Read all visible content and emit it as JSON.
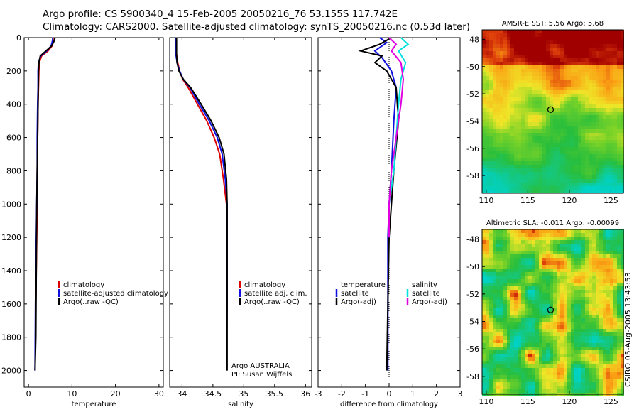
{
  "header": {
    "title_line1": "Argo profile: CS 5900340_4 15-Feb-2005 20050216_76 53.155S 117.742E",
    "title_line2": "Climatology: CARS2000. Satellite-adjusted climatology: synTS_20050216.nc (0.53d later)"
  },
  "timestamp": "CSIRO 05-Aug-2005 13:43:53",
  "colors": {
    "climatology": "#e00000",
    "satellite": "#1010e0",
    "argo": "#000000",
    "satellite_salinity": "#00e0e0",
    "argo_adj_salinity": "#e000e0"
  },
  "chart_data": [
    {
      "type": "line",
      "xlabel": "temperature",
      "ylabel": "",
      "xlim": [
        -1,
        31
      ],
      "ylim": [
        2100,
        0
      ],
      "y_reversed": true,
      "x_ticks": [
        0,
        10,
        20,
        30
      ],
      "y_ticks": [
        0,
        200,
        400,
        600,
        800,
        1000,
        1200,
        1400,
        1600,
        1800,
        2000
      ],
      "legend": [
        "climatology",
        "satellite-adjusted climatology",
        "Argo(..raw -QC)"
      ],
      "legend_position": "bottom-right",
      "series": [
        {
          "name": "climatology",
          "color": "#e00000",
          "x": [
            6.0,
            5.8,
            5.4,
            4.5,
            3.0,
            2.5,
            2.4,
            2.3,
            2.2,
            2.1,
            2.0,
            2.0,
            1.9,
            1.8,
            1.7,
            1.6
          ],
          "y": [
            0,
            20,
            50,
            80,
            110,
            150,
            200,
            300,
            400,
            600,
            800,
            1000,
            1200,
            1400,
            1600,
            1800
          ]
        },
        {
          "name": "satellite-adjusted climatology",
          "color": "#1010e0",
          "x": [
            5.6,
            5.5,
            5.2,
            4.2,
            2.8,
            2.3,
            2.2,
            2.2,
            2.1,
            2.0,
            2.0,
            1.9,
            1.8,
            1.7,
            1.6,
            1.5
          ],
          "y": [
            0,
            20,
            50,
            80,
            110,
            150,
            200,
            300,
            400,
            600,
            800,
            1000,
            1200,
            1400,
            1600,
            2000
          ]
        },
        {
          "name": "Argo(..raw -QC)",
          "color": "#000000",
          "x": [
            6.1,
            5.9,
            5.3,
            4.0,
            2.7,
            2.4,
            2.3,
            2.2,
            2.1,
            2.0,
            1.9,
            1.8,
            1.7,
            1.5
          ],
          "y": [
            0,
            20,
            50,
            80,
            110,
            150,
            200,
            400,
            600,
            800,
            1000,
            1400,
            1800,
            2000
          ]
        }
      ]
    },
    {
      "type": "line",
      "xlabel": "salinity",
      "ylabel": "",
      "xlim": [
        33.8,
        36.1
      ],
      "ylim": [
        2100,
        0
      ],
      "y_reversed": true,
      "x_ticks": [
        34,
        34.5,
        35,
        35.5,
        36
      ],
      "legend": [
        "climatology",
        "satellite adj. clim.",
        "Argo(..raw -QC)"
      ],
      "legend_position": "bottom-right",
      "annotation": [
        "Argo AUSTRALIA",
        "PI: Susan Wijffels"
      ],
      "series": [
        {
          "name": "climatology",
          "color": "#e00000",
          "x": [
            33.9,
            33.91,
            33.93,
            33.96,
            34.01,
            34.1,
            34.25,
            34.4,
            34.52,
            34.61,
            34.67,
            34.72
          ],
          "y": [
            0,
            100,
            150,
            200,
            250,
            300,
            400,
            500,
            600,
            700,
            850,
            1000
          ]
        },
        {
          "name": "satellite adj. clim.",
          "color": "#1010e0",
          "x": [
            33.9,
            33.9,
            33.92,
            33.96,
            34.02,
            34.13,
            34.28,
            34.44,
            34.57,
            34.65,
            34.7,
            34.73,
            34.73,
            34.73,
            34.72
          ],
          "y": [
            0,
            100,
            150,
            200,
            250,
            300,
            400,
            500,
            600,
            700,
            850,
            1000,
            1200,
            1600,
            2000
          ]
        },
        {
          "name": "Argo(..raw -QC)",
          "color": "#000000",
          "x": [
            33.91,
            33.91,
            33.92,
            33.95,
            34.02,
            34.14,
            34.31,
            34.47,
            34.6,
            34.68,
            34.72,
            34.73,
            34.73,
            34.73
          ],
          "y": [
            0,
            100,
            150,
            200,
            250,
            300,
            400,
            500,
            600,
            700,
            850,
            1000,
            1400,
            2000
          ]
        }
      ]
    },
    {
      "type": "line",
      "xlabel": "difference from climatology",
      "ylabel": "",
      "xlim": [
        -3,
        3
      ],
      "ylim": [
        2100,
        0
      ],
      "y_reversed": true,
      "x_ticks": [
        -3,
        -2,
        -1,
        0,
        1,
        2,
        3
      ],
      "legend": [
        "temperature",
        "satellite",
        "Argo(-adj)",
        "salinity",
        "satellite",
        "Argo(-adj)"
      ],
      "legend_position": "bottom",
      "series": [
        {
          "name": "temperature satellite",
          "color": "#1010e0",
          "x": [
            -0.4,
            -0.1,
            -0.6,
            -0.3,
            -0.1,
            0.1,
            0.3,
            0.2,
            0.1,
            0.0,
            -0.05,
            -0.05,
            -0.05
          ],
          "y": [
            0,
            30,
            80,
            120,
            160,
            200,
            300,
            500,
            800,
            1000,
            1200,
            1600,
            2000
          ]
        },
        {
          "name": "temperature Argo(-adj)",
          "color": "#000000",
          "x": [
            0.1,
            -0.4,
            -1.2,
            -0.3,
            -0.6,
            -0.1,
            0.3,
            0.4,
            0.2,
            0.1,
            0.0,
            -0.05,
            -0.1
          ],
          "y": [
            0,
            40,
            80,
            110,
            150,
            200,
            300,
            500,
            800,
            1000,
            1200,
            1600,
            2000
          ]
        },
        {
          "name": "salinity satellite",
          "color": "#00e0e0",
          "x": [
            0.5,
            0.8,
            0.4,
            0.7,
            0.5,
            0.4,
            0.3,
            0.2,
            0.0,
            0.0
          ],
          "y": [
            0,
            40,
            80,
            150,
            250,
            400,
            600,
            800,
            1000,
            1200
          ]
        },
        {
          "name": "salinity Argo(-adj)",
          "color": "#e000e0",
          "x": [
            0.0,
            0.3,
            0.1,
            0.5,
            0.6,
            0.5,
            0.3,
            0.1,
            0.0,
            0.0
          ],
          "y": [
            0,
            40,
            80,
            150,
            250,
            400,
            600,
            800,
            1000,
            1200
          ]
        }
      ]
    },
    {
      "type": "heatmap",
      "title": "AMSR-E SST: 5.56 Argo: 5.68",
      "xlim": [
        109.5,
        126.5
      ],
      "ylim": [
        -59.3,
        -47.3
      ],
      "x_ticks": [
        110,
        115,
        120,
        125
      ],
      "y_ticks": [
        -48,
        -50,
        -52,
        -54,
        -56,
        -58
      ],
      "marker": {
        "lon": 117.742,
        "lat": -53.155
      }
    },
    {
      "type": "heatmap",
      "title": "Altimetric SLA: -0.011 Argo: -0.00099",
      "xlim": [
        109.5,
        126.5
      ],
      "ylim": [
        -59.3,
        -47.3
      ],
      "x_ticks": [
        110,
        115,
        120,
        125
      ],
      "y_ticks": [
        -48,
        -50,
        -52,
        -54,
        -56,
        -58
      ],
      "marker": {
        "lon": 117.742,
        "lat": -53.155
      }
    }
  ]
}
